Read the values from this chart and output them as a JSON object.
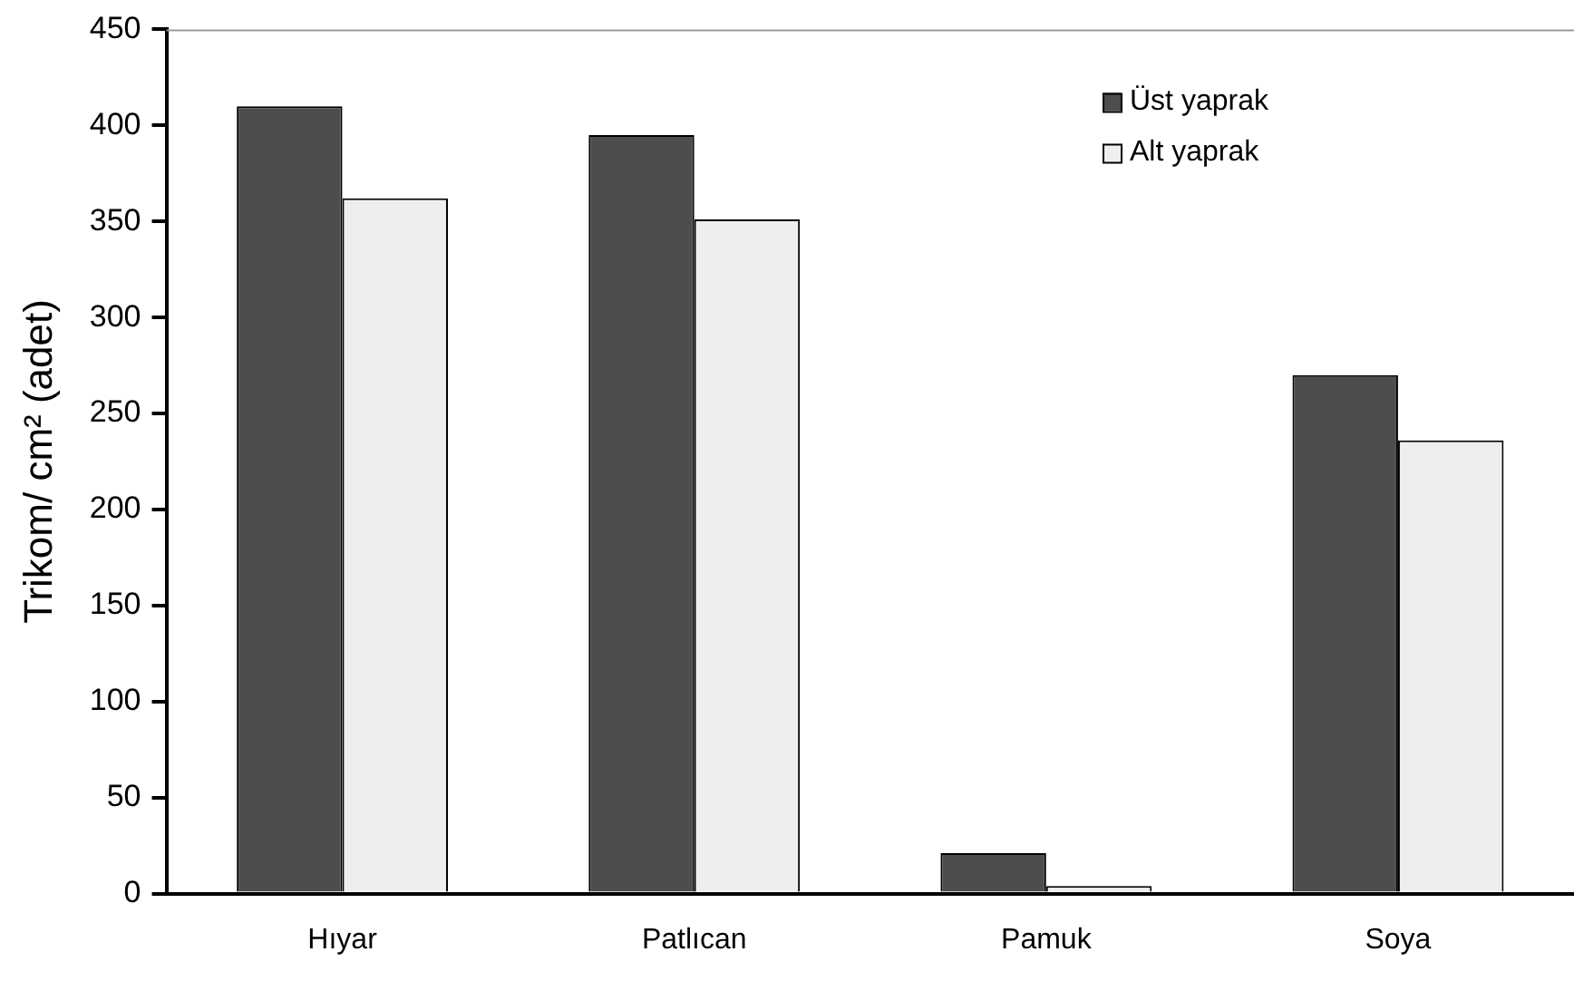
{
  "chart_data": {
    "type": "bar",
    "ylabel": "Trikom/ cm² (adet)",
    "categories": [
      "Hıyar",
      "Patlıcan",
      "Pamuk",
      "Soya"
    ],
    "series": [
      {
        "name": "Üst yaprak",
        "color": "#4d4d4d",
        "values": [
          410,
          395,
          21,
          270
        ]
      },
      {
        "name": "Alt yaprak",
        "color": "#eeeeee",
        "values": [
          362,
          351,
          4,
          236
        ]
      }
    ],
    "ylim": [
      0,
      450
    ],
    "yticks": [
      0,
      50,
      100,
      150,
      200,
      250,
      300,
      350,
      400,
      450
    ],
    "grid": false,
    "legend": "top right"
  }
}
